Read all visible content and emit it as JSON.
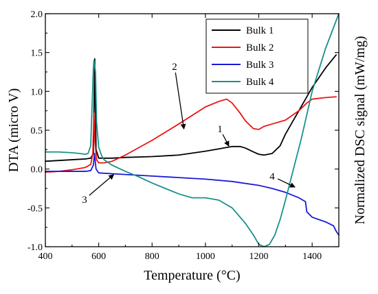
{
  "chart_data": {
    "type": "line",
    "xlabel": "Temperature (°C)",
    "ylabel": "DTA (micro V)",
    "y2label": "Normalized DSC signal (mW/mg)",
    "xlim": [
      400,
      1500
    ],
    "ylim": [
      -1.0,
      2.0
    ],
    "xticks": [
      400,
      600,
      800,
      1000,
      1200,
      1400
    ],
    "yticks": [
      -1.0,
      -0.5,
      0.0,
      0.5,
      1.0,
      1.5,
      2.0
    ],
    "xtick_labels": [
      "400",
      "600",
      "800",
      "1000",
      "1200",
      "1400"
    ],
    "ytick_labels": [
      "-1.0",
      "-0.5",
      "0.0",
      "0.5",
      "1.0",
      "1.5",
      "2.0"
    ],
    "legend_position": "top-right",
    "grid": false,
    "series": [
      {
        "name": "Bulk 1",
        "color": "#000000",
        "x": [
          400,
          450,
          500,
          550,
          570,
          580,
          585,
          590,
          600,
          650,
          700,
          800,
          900,
          1000,
          1050,
          1100,
          1130,
          1150,
          1180,
          1200,
          1220,
          1250,
          1280,
          1300,
          1350,
          1400,
          1450,
          1490
        ],
        "y": [
          0.1,
          0.11,
          0.12,
          0.13,
          0.14,
          0.2,
          1.42,
          0.25,
          0.14,
          0.14,
          0.15,
          0.16,
          0.18,
          0.23,
          0.26,
          0.29,
          0.29,
          0.27,
          0.22,
          0.19,
          0.18,
          0.2,
          0.3,
          0.45,
          0.75,
          1.05,
          1.3,
          1.47
        ]
      },
      {
        "name": "Bulk 2",
        "color": "#ee1111",
        "x": [
          400,
          450,
          500,
          550,
          570,
          578,
          582,
          586,
          592,
          600,
          620,
          650,
          700,
          800,
          900,
          1000,
          1050,
          1080,
          1100,
          1130,
          1150,
          1180,
          1200,
          1220,
          1250,
          1300,
          1350,
          1380,
          1400,
          1450,
          1490
        ],
        "y": [
          -0.04,
          -0.03,
          -0.01,
          0.02,
          0.06,
          0.2,
          0.72,
          0.35,
          0.12,
          0.08,
          0.08,
          0.1,
          0.18,
          0.37,
          0.58,
          0.8,
          0.87,
          0.9,
          0.85,
          0.72,
          0.62,
          0.52,
          0.51,
          0.55,
          0.58,
          0.63,
          0.75,
          0.85,
          0.9,
          0.92,
          0.93
        ]
      },
      {
        "name": "Bulk 3",
        "color": "#1818d8",
        "x": [
          400,
          450,
          500,
          550,
          570,
          580,
          584,
          590,
          600,
          700,
          800,
          900,
          1000,
          1100,
          1200,
          1250,
          1300,
          1350,
          1375,
          1380,
          1400,
          1450,
          1480,
          1490,
          1500
        ],
        "y": [
          -0.03,
          -0.03,
          -0.03,
          -0.03,
          -0.02,
          0.05,
          0.2,
          0.0,
          -0.05,
          -0.07,
          -0.09,
          -0.11,
          -0.13,
          -0.16,
          -0.21,
          -0.25,
          -0.3,
          -0.37,
          -0.42,
          -0.55,
          -0.62,
          -0.68,
          -0.73,
          -0.8,
          -0.85
        ]
      },
      {
        "name": "Bulk 4",
        "color": "#16918a",
        "x": [
          400,
          450,
          500,
          530,
          550,
          560,
          570,
          575,
          580,
          582,
          588,
          592,
          600,
          610,
          620,
          650,
          700,
          750,
          800,
          850,
          900,
          950,
          1000,
          1050,
          1100,
          1150,
          1180,
          1200,
          1220,
          1240,
          1260,
          1280,
          1300,
          1330,
          1360,
          1400,
          1450,
          1500
        ],
        "y": [
          0.22,
          0.22,
          0.21,
          0.2,
          0.19,
          0.2,
          0.3,
          0.8,
          1.3,
          1.4,
          1.25,
          0.6,
          0.28,
          0.18,
          0.12,
          0.05,
          -0.03,
          -0.1,
          -0.18,
          -0.25,
          -0.32,
          -0.37,
          -0.37,
          -0.4,
          -0.5,
          -0.7,
          -0.85,
          -0.97,
          -1.0,
          -0.97,
          -0.85,
          -0.65,
          -0.4,
          0.0,
          0.4,
          1.0,
          1.55,
          2.0
        ]
      }
    ],
    "annotations": [
      {
        "label": "1",
        "target": [
          1090,
          0.28
        ]
      },
      {
        "label": "2",
        "target": [
          920,
          0.5
        ]
      },
      {
        "label": "3",
        "target": [
          660,
          -0.06
        ]
      },
      {
        "label": "4",
        "target": [
          1340,
          -0.24
        ]
      }
    ]
  }
}
